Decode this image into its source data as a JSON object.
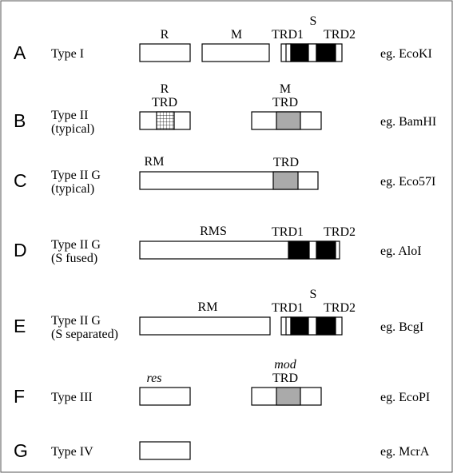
{
  "colors": {
    "border": "#000000",
    "fill_white": "#ffffff",
    "fill_grey": "#aaaaaa",
    "fill_black": "#000000"
  },
  "rows": [
    {
      "letter": "A",
      "type_line1": "Type I",
      "type_line2": "",
      "example": "eg. EcoKI",
      "domains": [
        {
          "top_label": "R",
          "top_italic": false,
          "sub_label": "",
          "pattern": "plain"
        },
        {
          "top_label": "M",
          "top_italic": false,
          "sub_label": "",
          "pattern": "plain"
        },
        {
          "top_label": "S",
          "top_italic": false,
          "sub_label": "",
          "label_left": "TRD1",
          "label_right": "TRD2",
          "pattern": "two-black"
        }
      ]
    },
    {
      "letter": "B",
      "type_line1": "Type II",
      "type_line2": "(typical)",
      "example": "eg. BamHI",
      "domains": [
        {
          "top_label": "R",
          "top_italic": false,
          "sub_label": "TRD",
          "pattern": "hatched"
        },
        {
          "top_label": "M",
          "top_italic": false,
          "sub_label": "TRD",
          "pattern": "grey"
        }
      ]
    },
    {
      "letter": "C",
      "type_line1": "Type II G",
      "type_line2": "(typical)",
      "example": "eg. Eco57I",
      "domains": [
        {
          "top_label": "RM",
          "top_italic": false,
          "sub_label": "TRD",
          "pattern": "grey"
        }
      ]
    },
    {
      "letter": "D",
      "type_line1": "Type II G",
      "type_line2": "(S fused)",
      "example": "eg. AloI",
      "domains": [
        {
          "top_label": "RMS",
          "top_italic": false,
          "sub_label": "",
          "label_left": "TRD1",
          "label_right": "TRD2",
          "pattern": "two-black"
        }
      ]
    },
    {
      "letter": "E",
      "type_line1": "Type II G",
      "type_line2": "(S separated)",
      "example": "eg. BcgI",
      "domains": [
        {
          "top_label": "RM",
          "top_italic": false,
          "sub_label": "",
          "pattern": "plain"
        },
        {
          "top_label": "S",
          "top_italic": false,
          "sub_label": "",
          "label_left": "TRD1",
          "label_right": "TRD2",
          "pattern": "two-black"
        }
      ]
    },
    {
      "letter": "F",
      "type_line1": "Type III",
      "type_line2": "",
      "example": "eg. EcoPI",
      "domains": [
        {
          "top_label": "res",
          "top_italic": true,
          "sub_label": "",
          "pattern": "plain"
        },
        {
          "top_label": "mod",
          "top_italic": true,
          "sub_label": "TRD",
          "pattern": "grey"
        }
      ]
    },
    {
      "letter": "G",
      "type_line1": "Type IV",
      "type_line2": "",
      "example": "eg. McrA",
      "domains": [
        {
          "top_label": "",
          "top_italic": false,
          "sub_label": "",
          "pattern": "plain"
        }
      ]
    }
  ]
}
